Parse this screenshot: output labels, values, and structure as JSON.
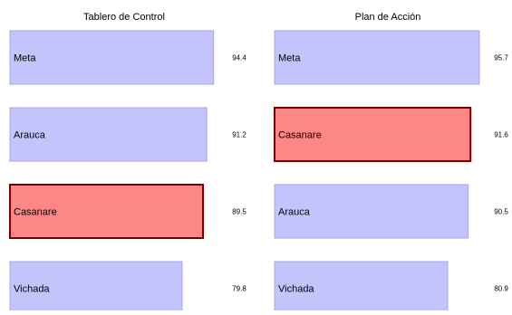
{
  "chart_data": [
    {
      "type": "bar",
      "orientation": "horizontal",
      "title": "Tablero de Control",
      "categories": [
        "Meta",
        "Arauca",
        "Casanare",
        "Vichada"
      ],
      "values": [
        94.4,
        91.2,
        89.5,
        79.8
      ],
      "highlight": "Casanare",
      "xlim": [
        0,
        100
      ],
      "grid": false,
      "legend": "none"
    },
    {
      "type": "bar",
      "orientation": "horizontal",
      "title": "Plan de Acción",
      "categories": [
        "Meta",
        "Casanare",
        "Arauca",
        "Vichada"
      ],
      "values": [
        95.7,
        91.6,
        90.5,
        80.9
      ],
      "highlight": "Casanare",
      "xlim": [
        0,
        100
      ],
      "grid": false,
      "legend": "none"
    }
  ],
  "colors": {
    "bar_fill": "#c4c4fc",
    "bar_stroke": "#a4a4f0",
    "highlight_fill": "#fd8686",
    "highlight_stroke": "#7a0000"
  }
}
